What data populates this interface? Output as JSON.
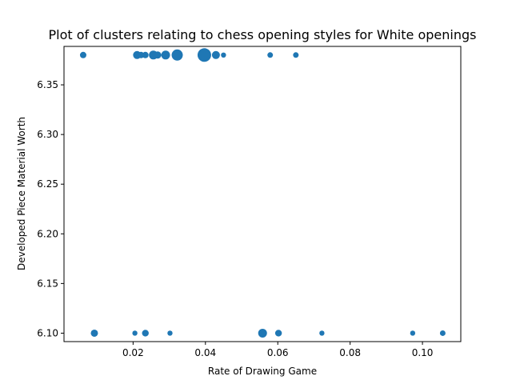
{
  "chart_data": {
    "type": "scatter",
    "title": "Plot of clusters relating to chess opening styles for White openings",
    "xlabel": "Rate of Drawing Game",
    "ylabel": "Developed Piece Material Worth",
    "xlim": [
      0.0009,
      0.1106
    ],
    "ylim": [
      6.0915,
      6.3887
    ],
    "xticks": [
      0.02,
      0.04,
      0.06,
      0.08,
      0.1
    ],
    "xtick_labels": [
      "0.02",
      "0.04",
      "0.06",
      "0.08",
      "0.10"
    ],
    "yticks": [
      6.1,
      6.15,
      6.2,
      6.25,
      6.3,
      6.35
    ],
    "ytick_labels": [
      "6.10",
      "6.15",
      "6.20",
      "6.25",
      "6.30",
      "6.35"
    ],
    "grid": false,
    "color": "#1f77b4",
    "points": [
      {
        "x": 0.0062,
        "y": 6.38,
        "size": 4
      },
      {
        "x": 0.0211,
        "y": 6.38,
        "size": 5
      },
      {
        "x": 0.0222,
        "y": 6.38,
        "size": 4
      },
      {
        "x": 0.0234,
        "y": 6.38,
        "size": 4
      },
      {
        "x": 0.0256,
        "y": 6.38,
        "size": 5.5
      },
      {
        "x": 0.0268,
        "y": 6.38,
        "size": 4.5
      },
      {
        "x": 0.029,
        "y": 6.38,
        "size": 5.5
      },
      {
        "x": 0.0322,
        "y": 6.38,
        "size": 7
      },
      {
        "x": 0.0397,
        "y": 6.38,
        "size": 8.5
      },
      {
        "x": 0.0429,
        "y": 6.38,
        "size": 5
      },
      {
        "x": 0.045,
        "y": 6.38,
        "size": 3.2
      },
      {
        "x": 0.0579,
        "y": 6.38,
        "size": 3.5
      },
      {
        "x": 0.065,
        "y": 6.38,
        "size": 3.5
      },
      {
        "x": 0.0093,
        "y": 6.1,
        "size": 4.5
      },
      {
        "x": 0.0205,
        "y": 6.1,
        "size": 3.2
      },
      {
        "x": 0.0234,
        "y": 6.1,
        "size": 4.2
      },
      {
        "x": 0.0302,
        "y": 6.1,
        "size": 3.2
      },
      {
        "x": 0.0558,
        "y": 6.1,
        "size": 5.5
      },
      {
        "x": 0.0602,
        "y": 6.1,
        "size": 4.2
      },
      {
        "x": 0.0722,
        "y": 6.1,
        "size": 3.2
      },
      {
        "x": 0.0973,
        "y": 6.1,
        "size": 3.2
      },
      {
        "x": 0.1056,
        "y": 6.1,
        "size": 3.5
      }
    ]
  }
}
